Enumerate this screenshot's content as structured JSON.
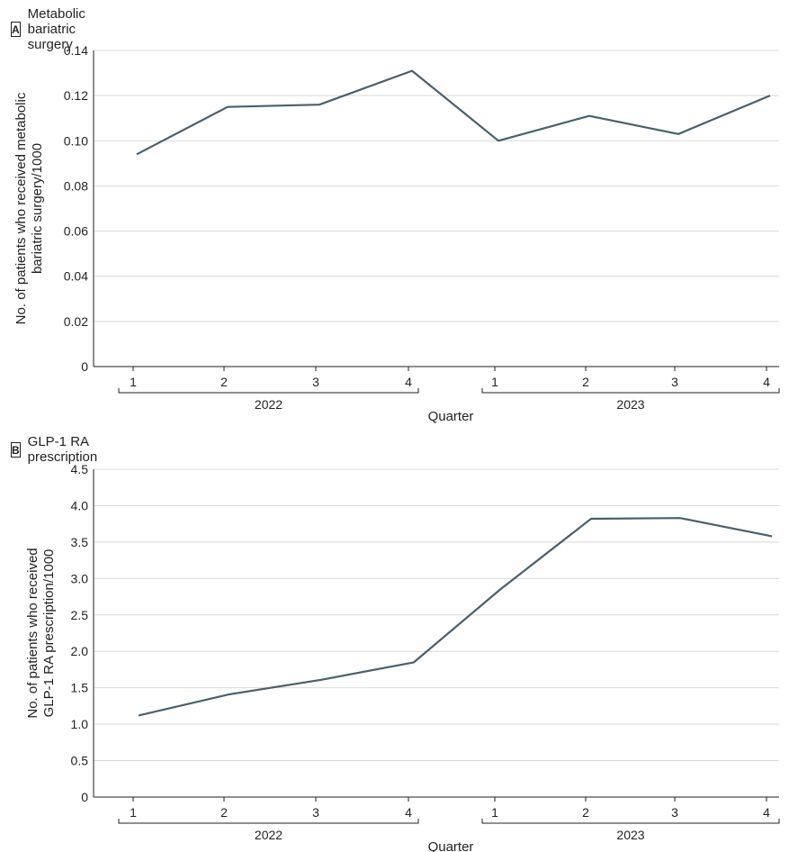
{
  "chart_data": [
    {
      "panel": "A",
      "title": "Metabolic bariatric surgery",
      "type": "line",
      "categories": [
        "1",
        "2",
        "3",
        "4",
        "1",
        "2",
        "3",
        "4"
      ],
      "groups": [
        {
          "label": "2022",
          "categories": [
            "1",
            "2",
            "3",
            "4"
          ]
        },
        {
          "label": "2023",
          "categories": [
            "1",
            "2",
            "3",
            "4"
          ]
        }
      ],
      "values": [
        0.094,
        0.115,
        0.116,
        0.131,
        0.1,
        0.111,
        0.103,
        0.12
      ],
      "xlabel": "Quarter",
      "ylabel_lines": [
        "No. of patients who received metabolic",
        "bariatric surgery/1000"
      ],
      "ylim": [
        0,
        0.14
      ],
      "yticks": [
        "0",
        "0.02",
        "0.04",
        "0.06",
        "0.08",
        "0.10",
        "0.12",
        "0.14"
      ],
      "grid": true,
      "color": "#4a5f6b"
    },
    {
      "panel": "B",
      "title": "GLP-1 RA prescription",
      "type": "line",
      "categories": [
        "1",
        "2",
        "3",
        "4",
        "1",
        "2",
        "3",
        "4"
      ],
      "groups": [
        {
          "label": "2022",
          "categories": [
            "1",
            "2",
            "3",
            "4"
          ]
        },
        {
          "label": "2023",
          "categories": [
            "1",
            "2",
            "3",
            "4"
          ]
        }
      ],
      "values": [
        1.12,
        1.41,
        1.61,
        1.85,
        2.85,
        3.82,
        3.83,
        3.58
      ],
      "xlabel": "Quarter",
      "ylabel_lines": [
        "No. of patients who received",
        "GLP-1 RA prescription/1000"
      ],
      "ylim": [
        0,
        4.5
      ],
      "yticks": [
        "0",
        "0.5",
        "1.0",
        "1.5",
        "2.0",
        "2.5",
        "3.0",
        "3.5",
        "4.0",
        "4.5"
      ],
      "grid": true,
      "color": "#4a5f6b"
    }
  ]
}
